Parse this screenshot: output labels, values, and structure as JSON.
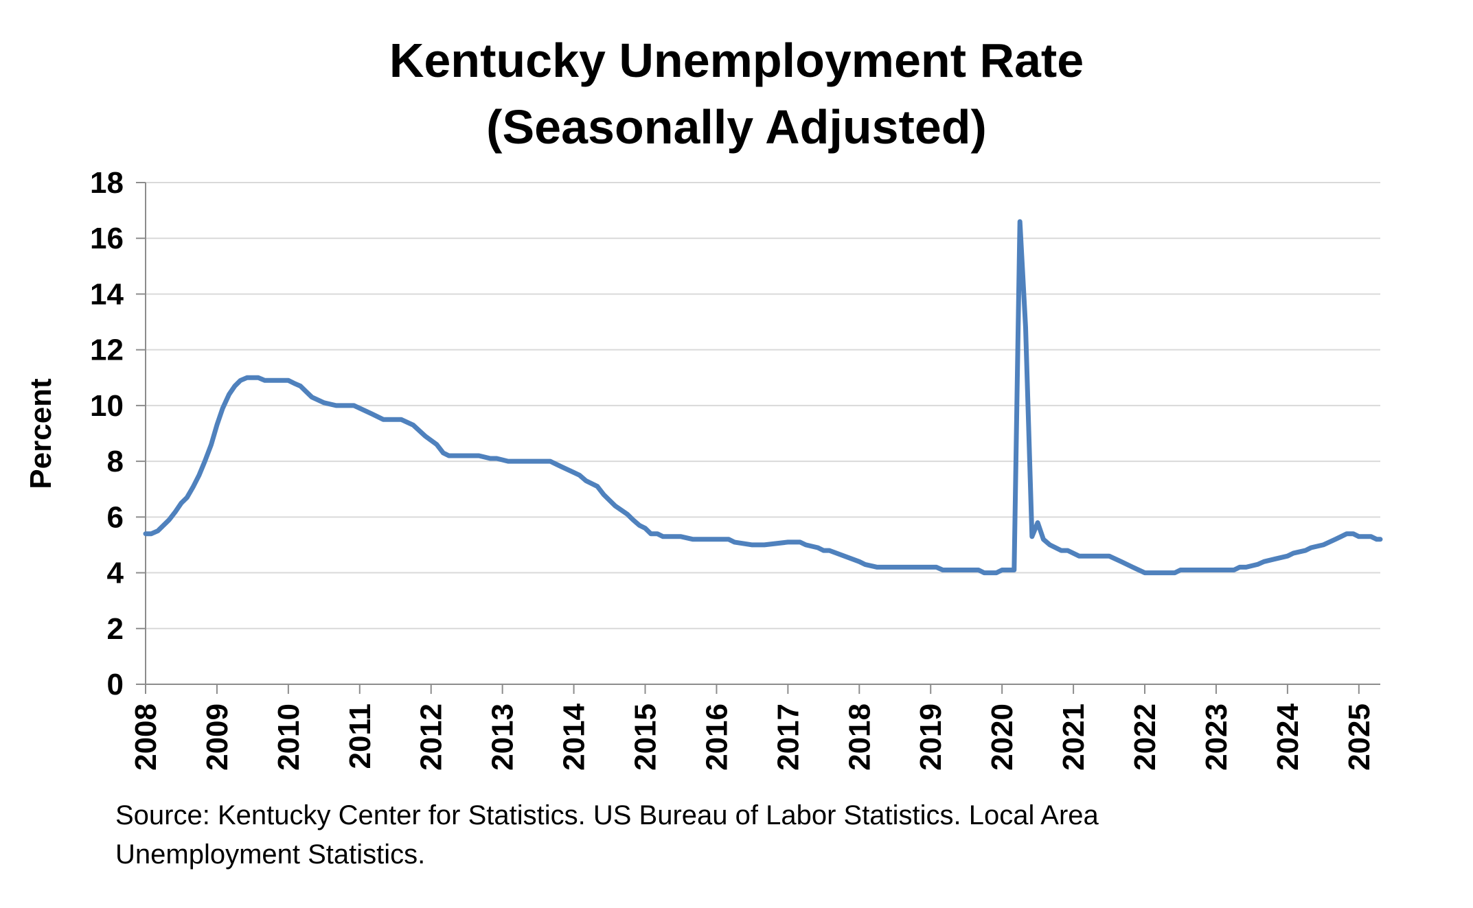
{
  "chart_data": {
    "type": "line",
    "title_line1": "Kentucky Unemployment Rate",
    "title_line2": "(Seasonally Adjusted)",
    "ylabel": "Percent",
    "xlabel": "",
    "ylim": [
      0,
      18
    ],
    "yticks": [
      "0",
      "2",
      "4",
      "6",
      "8",
      "10",
      "12",
      "14",
      "16",
      "18"
    ],
    "xlim": [
      2008.0,
      2025.3
    ],
    "xticks": [
      "2008",
      "2009",
      "2010",
      "2011",
      "2012",
      "2013",
      "2014",
      "2015",
      "2016",
      "2017",
      "2018",
      "2019",
      "2020",
      "2021",
      "2022",
      "2023",
      "2024",
      "2025"
    ],
    "grid": "horizontal",
    "legend": "none",
    "line_color": "#4F81BD",
    "series": [
      {
        "x": [
          2008.0,
          2008.08,
          2008.17,
          2008.25,
          2008.33,
          2008.42,
          2008.5,
          2008.58,
          2008.67,
          2008.75,
          2008.83,
          2008.92,
          2009.0,
          2009.08,
          2009.17,
          2009.25,
          2009.33,
          2009.42,
          2009.5,
          2009.58,
          2009.67,
          2009.75,
          2009.83,
          2009.92,
          2010.0,
          2010.08,
          2010.17,
          2010.25,
          2010.33,
          2010.5,
          2010.67,
          2010.92,
          2011.17,
          2011.33,
          2011.58,
          2011.75,
          2011.92,
          2012.08,
          2012.17,
          2012.25,
          2012.58,
          2012.67,
          2012.83,
          2012.92,
          2013.08,
          2013.67,
          2013.75,
          2013.83,
          2014.0,
          2014.08,
          2014.17,
          2014.33,
          2014.42,
          2014.58,
          2014.75,
          2014.83,
          2014.92,
          2015.0,
          2015.08,
          2015.17,
          2015.25,
          2015.42,
          2015.5,
          2015.67,
          2016.08,
          2016.17,
          2016.25,
          2016.5,
          2016.67,
          2017.0,
          2017.08,
          2017.17,
          2017.25,
          2017.42,
          2017.5,
          2017.58,
          2018.0,
          2018.08,
          2018.25,
          2019.08,
          2019.17,
          2019.25,
          2019.67,
          2019.75,
          2019.92,
          2020.0,
          2020.08,
          2020.17,
          2020.25,
          2020.33,
          2020.42,
          2020.5,
          2020.58,
          2020.67,
          2020.83,
          2020.92,
          2021.08,
          2021.17,
          2021.5,
          2021.67,
          2021.83,
          2022.0,
          2022.08,
          2022.17,
          2022.42,
          2022.5,
          2022.58,
          2023.25,
          2023.33,
          2023.42,
          2023.58,
          2023.67,
          2023.83,
          2024.0,
          2024.08,
          2024.25,
          2024.33,
          2024.5,
          2024.67,
          2024.75,
          2024.83,
          2024.92,
          2025.0,
          2025.17,
          2025.25,
          2025.3
        ],
        "values": [
          5.4,
          5.4,
          5.5,
          5.7,
          5.9,
          6.2,
          6.5,
          6.7,
          7.1,
          7.5,
          8.0,
          8.6,
          9.3,
          9.9,
          10.4,
          10.7,
          10.9,
          11.0,
          11.0,
          11.0,
          10.9,
          10.9,
          10.9,
          10.9,
          10.9,
          10.8,
          10.7,
          10.5,
          10.3,
          10.1,
          10.0,
          10.0,
          9.7,
          9.5,
          9.5,
          9.3,
          8.9,
          8.6,
          8.3,
          8.2,
          8.2,
          8.2,
          8.1,
          8.1,
          8.0,
          8.0,
          7.9,
          7.8,
          7.6,
          7.5,
          7.3,
          7.1,
          6.8,
          6.4,
          6.1,
          5.9,
          5.7,
          5.6,
          5.4,
          5.4,
          5.3,
          5.3,
          5.3,
          5.2,
          5.2,
          5.2,
          5.1,
          5.0,
          5.0,
          5.1,
          5.1,
          5.1,
          5.0,
          4.9,
          4.8,
          4.8,
          4.4,
          4.3,
          4.2,
          4.2,
          4.1,
          4.1,
          4.1,
          4.0,
          4.0,
          4.1,
          4.1,
          4.1,
          16.6,
          12.8,
          5.3,
          5.8,
          5.2,
          5.0,
          4.8,
          4.8,
          4.6,
          4.6,
          4.6,
          4.4,
          4.2,
          4.0,
          4.0,
          4.0,
          4.0,
          4.1,
          4.1,
          4.1,
          4.2,
          4.2,
          4.3,
          4.4,
          4.5,
          4.6,
          4.7,
          4.8,
          4.9,
          5.0,
          5.2,
          5.3,
          5.4,
          5.4,
          5.3,
          5.3,
          5.2,
          5.2
        ]
      }
    ],
    "source_line1": "Source: Kentucky Center for Statistics. US Bureau of Labor Statistics. Local Area",
    "source_line2": "Unemployment Statistics."
  }
}
